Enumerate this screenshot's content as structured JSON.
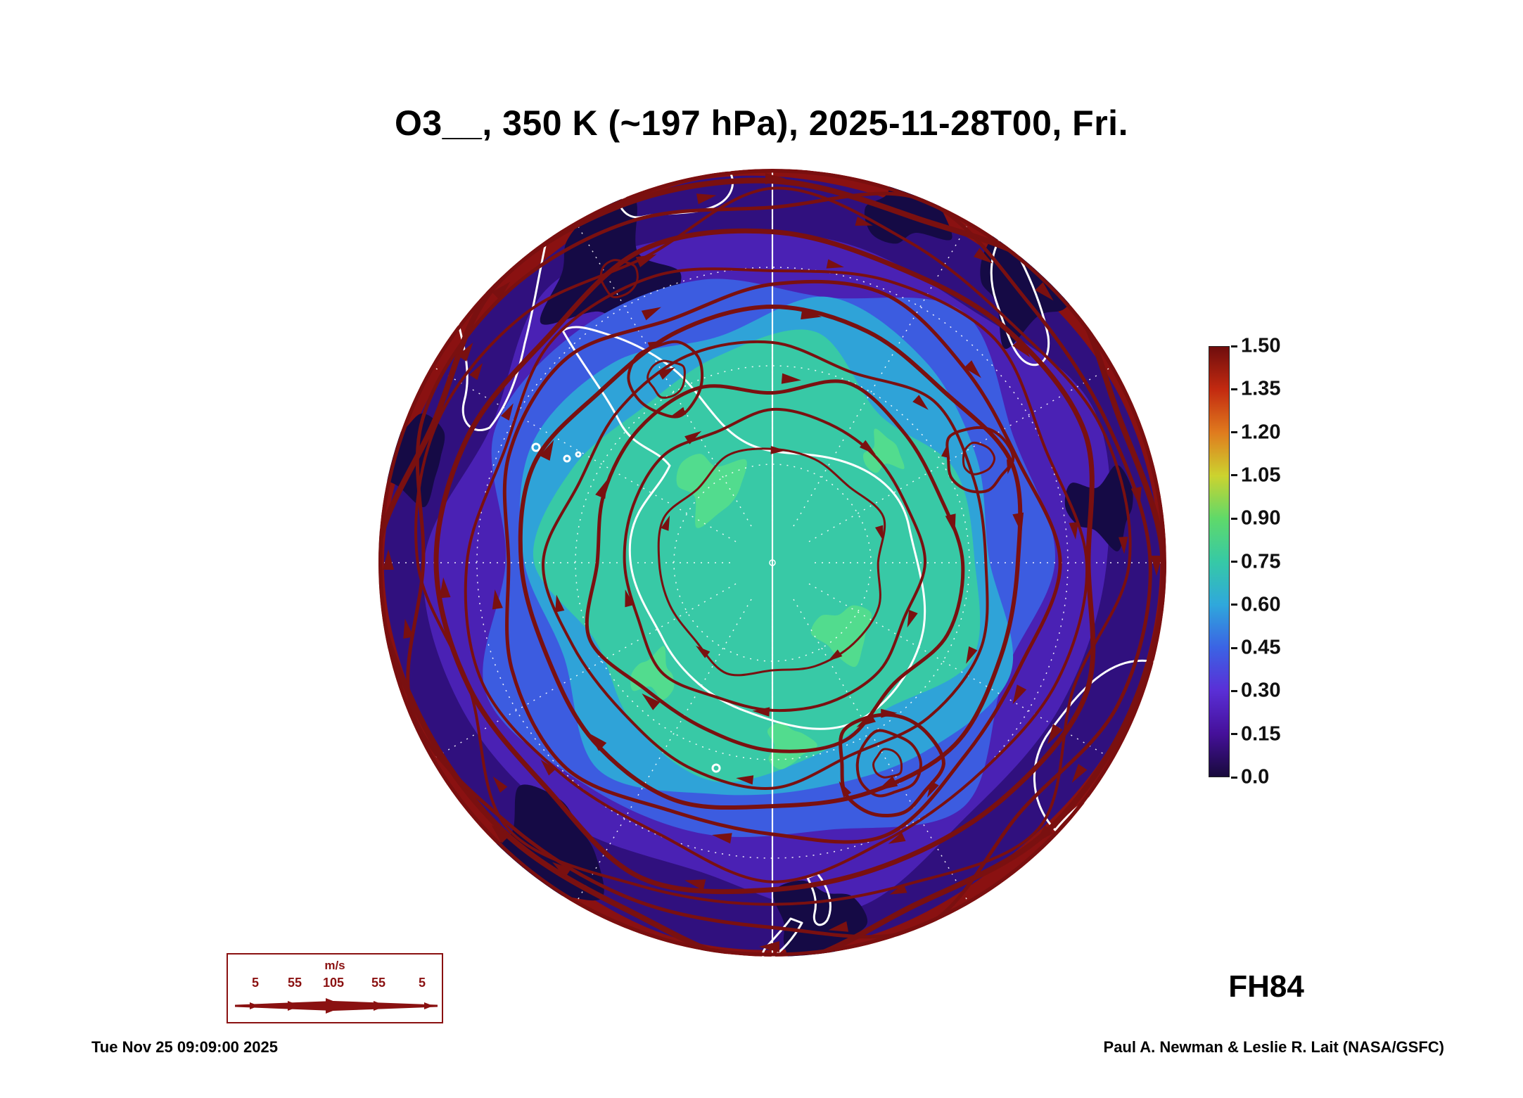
{
  "title": "O3__, 350 K (~197 hPa), 2025-11-28T00, Fri.",
  "forecast_label": "FH84",
  "footer": {
    "timestamp": "Tue Nov 25 09:09:00 2025",
    "credit": "Paul A. Newman & Leslie R. Lait (NASA/GSFC)"
  },
  "wind_legend": {
    "units": "m/s",
    "values": [
      "5",
      "55",
      "105",
      "55",
      "5"
    ]
  },
  "chart_data": {
    "type": "heatmap",
    "title": "O3__, 350 K (~197 hPa), 2025-11-28T00, Fri.",
    "field": "O3 (ozone)",
    "level": "350 K (~197 hPa)",
    "valid_time": "2025-11-28T00, Fri.",
    "forecast_hour": "FH84",
    "projection": "south polar stereographic, Antarctica centered",
    "overlays": [
      "filled ozone contours",
      "wind streamlines (dark red with arrowheads)",
      "coastlines (white)",
      "dashed latitude-longitude graticule (white)"
    ],
    "colorbar": {
      "orientation": "vertical",
      "range": [
        0.0,
        1.5
      ],
      "tick_step": 0.15,
      "ticks": [
        "1.50",
        "1.35",
        "1.20",
        "1.05",
        "0.90",
        "0.75",
        "0.60",
        "0.45",
        "0.30",
        "0.15",
        "0.0"
      ],
      "colors_top_to_bottom": [
        "#6f0d0d",
        "#c32a10",
        "#e07b1e",
        "#ccd32f",
        "#5fd96a",
        "#36c9a6",
        "#2fa8dc",
        "#3b63e4",
        "#5a2fd6",
        "#45109a",
        "#180a3c"
      ]
    },
    "wind_legend": {
      "units": "m/s",
      "values": [
        5,
        55,
        105,
        55,
        5
      ]
    },
    "accent_colors": {
      "streamline": "#7a1010",
      "coastline": "#ffffff",
      "legend_text": "#8a1111",
      "map_center_fill": "#38c9a6",
      "map_outer_fill": "#30107e"
    }
  }
}
